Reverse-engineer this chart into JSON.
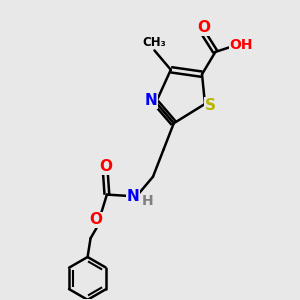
{
  "background_color": "#e8e8e8",
  "bond_color": "#000000",
  "atom_colors": {
    "O": "#ff0000",
    "N": "#0000ff",
    "S": "#b8b800",
    "C": "#000000",
    "H": "#808080"
  },
  "figsize": [
    3.0,
    3.0
  ],
  "dpi": 100
}
